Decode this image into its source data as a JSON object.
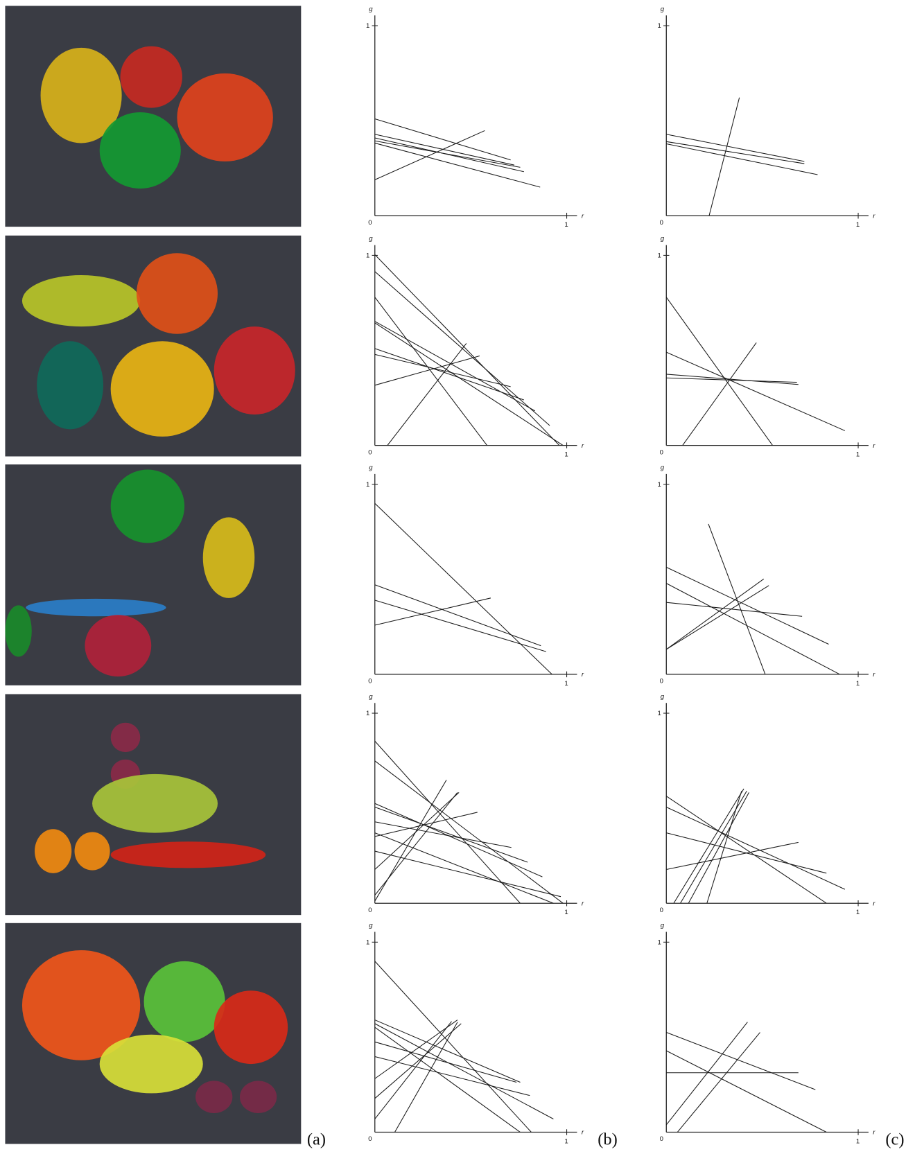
{
  "figure": {
    "panel_labels": [
      "(a)",
      "(b)",
      "(c)"
    ],
    "plot_axis": {
      "y_label": "g",
      "y_tick": "1",
      "origin": "0",
      "x_tick": "1",
      "x_label": "r"
    }
  }
}
